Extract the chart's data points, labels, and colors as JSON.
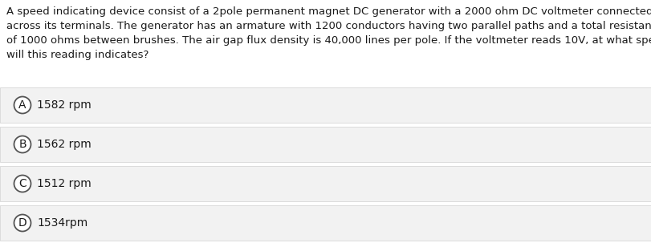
{
  "question_text": "A speed indicating device consist of a 2pole permanent magnet DC generator with a 2000 ohm DC voltmeter connected\nacross its terminals. The generator has an armature with 1200 conductors having two parallel paths and a total resistance\nof 1000 ohms between brushes. The air gap flux density is 40,000 lines per pole. If the voltmeter reads 10V, at what speed\nwill this reading indicates?",
  "options": [
    {
      "label": "A",
      "text": "1582 rpm"
    },
    {
      "label": "B",
      "text": "1562 rpm"
    },
    {
      "label": "C",
      "text": "1512 rpm"
    },
    {
      "label": "D",
      "text": "1534rpm"
    }
  ],
  "background_color": "#ffffff",
  "option_bg_color": "#f2f2f2",
  "option_border_color": "#d0d0d0",
  "circle_color": "#ffffff",
  "circle_edge_color": "#555555",
  "text_color": "#1a1a1a",
  "question_fontsize": 9.5,
  "option_fontsize": 10.0,
  "label_fontsize": 10.0,
  "fig_width": 8.12,
  "fig_height": 3.08,
  "dpi": 100
}
